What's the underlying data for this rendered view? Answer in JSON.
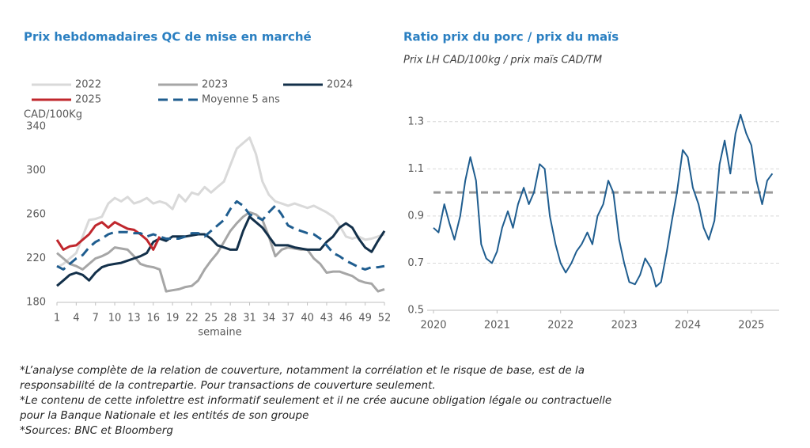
{
  "chart_data": [
    {
      "type": "line",
      "title": "Prix hebdomadaires QC de mise en marché",
      "ylabel": "CAD/100Kg",
      "xlabel": "semaine",
      "x": [
        1,
        2,
        3,
        4,
        5,
        6,
        7,
        8,
        9,
        10,
        11,
        12,
        13,
        14,
        15,
        16,
        17,
        18,
        19,
        20,
        21,
        22,
        23,
        24,
        25,
        26,
        27,
        28,
        29,
        30,
        31,
        32,
        33,
        34,
        35,
        36,
        37,
        38,
        39,
        40,
        41,
        42,
        43,
        44,
        45,
        46,
        47,
        48,
        49,
        50,
        51,
        52
      ],
      "xlim": [
        1,
        52
      ],
      "xticks": [
        1,
        4,
        7,
        10,
        13,
        16,
        19,
        22,
        25,
        28,
        31,
        34,
        37,
        40,
        43,
        46,
        49,
        52
      ],
      "ylim": [
        180,
        340
      ],
      "yticks": [
        180,
        220,
        260,
        300,
        340
      ],
      "grid": false,
      "legend": "top",
      "series": [
        {
          "name": "2022",
          "color": "#d9d9d9",
          "dash": false,
          "values": [
            212,
            215,
            220,
            225,
            240,
            255,
            256,
            258,
            270,
            275,
            272,
            276,
            270,
            272,
            275,
            270,
            272,
            270,
            265,
            278,
            272,
            280,
            278,
            285,
            280,
            285,
            290,
            305,
            320,
            325,
            330,
            315,
            290,
            278,
            272,
            270,
            268,
            270,
            268,
            266,
            268,
            265,
            262,
            258,
            250,
            240,
            238,
            240,
            237,
            238,
            240,
            242
          ]
        },
        {
          "name": "2023",
          "color": "#a6a6a6",
          "dash": false,
          "values": [
            225,
            220,
            215,
            213,
            210,
            215,
            220,
            222,
            225,
            230,
            229,
            228,
            222,
            215,
            213,
            212,
            210,
            190,
            191,
            192,
            194,
            195,
            200,
            210,
            218,
            225,
            235,
            245,
            252,
            258,
            262,
            260,
            255,
            240,
            222,
            228,
            230,
            229,
            228,
            228,
            220,
            215,
            207,
            208,
            208,
            206,
            204,
            200,
            198,
            197,
            190,
            192
          ]
        },
        {
          "name": "2024",
          "color": "#13304a",
          "dash": false,
          "values": [
            195,
            200,
            205,
            207,
            205,
            200,
            207,
            212,
            214,
            215,
            216,
            218,
            220,
            222,
            225,
            235,
            238,
            236,
            240,
            240,
            240,
            241,
            242,
            242,
            238,
            232,
            230,
            228,
            228,
            245,
            258,
            253,
            248,
            240,
            232,
            232,
            232,
            230,
            229,
            228,
            228,
            228,
            235,
            240,
            248,
            252,
            248,
            238,
            230,
            226,
            236,
            245
          ]
        },
        {
          "name": "2025",
          "color": "#c0272d",
          "dash": false,
          "values": [
            237,
            228,
            231,
            232,
            237,
            242,
            250,
            253,
            248,
            253,
            250,
            247,
            246,
            242,
            237,
            228,
            240,
            null,
            null,
            null,
            null,
            null,
            null,
            null,
            null,
            null,
            null,
            null,
            null,
            null,
            null,
            null,
            null,
            null,
            null,
            null,
            null,
            null,
            null,
            null,
            null,
            null,
            null,
            null,
            null,
            null,
            null,
            null,
            null,
            null,
            null,
            null
          ]
        },
        {
          "name": "Moyenne 5 ans",
          "color": "#1f5d8f",
          "dash": true,
          "values": [
            213,
            210,
            215,
            220,
            223,
            230,
            235,
            238,
            242,
            244,
            244,
            244,
            243,
            243,
            240,
            242,
            240,
            238,
            238,
            238,
            240,
            243,
            243,
            240,
            245,
            250,
            255,
            265,
            272,
            268,
            260,
            258,
            255,
            262,
            268,
            260,
            250,
            247,
            245,
            243,
            242,
            238,
            232,
            225,
            222,
            218,
            215,
            212,
            210,
            212,
            212,
            213
          ]
        }
      ]
    },
    {
      "type": "line",
      "title": "Ratio prix du porc / prix du maïs",
      "subtitle": "Prix LH CAD/100kg / prix maïs CAD/TM",
      "x": [
        2020,
        2020.08,
        2020.17,
        2020.25,
        2020.33,
        2020.42,
        2020.5,
        2020.58,
        2020.67,
        2020.75,
        2020.83,
        2020.92,
        2021,
        2021.08,
        2021.17,
        2021.25,
        2021.33,
        2021.42,
        2021.5,
        2021.58,
        2021.67,
        2021.75,
        2021.83,
        2021.92,
        2022,
        2022.08,
        2022.17,
        2022.25,
        2022.33,
        2022.42,
        2022.5,
        2022.58,
        2022.67,
        2022.75,
        2022.83,
        2022.92,
        2023,
        2023.08,
        2023.17,
        2023.25,
        2023.33,
        2023.42,
        2023.5,
        2023.58,
        2023.67,
        2023.75,
        2023.83,
        2023.92,
        2024,
        2024.08,
        2024.17,
        2024.25,
        2024.33,
        2024.42,
        2024.5,
        2024.58,
        2024.67,
        2024.75,
        2024.83,
        2024.92,
        2025,
        2025.08,
        2025.17,
        2025.25,
        2025.33
      ],
      "xlim": [
        2020,
        2025.4
      ],
      "xticks": [
        2020,
        2021,
        2022,
        2023,
        2024,
        2025
      ],
      "ylim": [
        0.5,
        1.4
      ],
      "yticks": [
        0.5,
        0.7,
        0.9,
        1.1,
        1.3
      ],
      "grid": true,
      "reference": {
        "value": 1,
        "color": "#999999"
      },
      "series": [
        {
          "color": "#1f5d8f",
          "dash": false,
          "values": [
            0.85,
            0.83,
            0.95,
            0.87,
            0.8,
            0.9,
            1.05,
            1.15,
            1.05,
            0.78,
            0.72,
            0.7,
            0.75,
            0.85,
            0.92,
            0.85,
            0.95,
            1.02,
            0.95,
            1.0,
            1.12,
            1.1,
            0.9,
            0.78,
            0.7,
            0.66,
            0.7,
            0.75,
            0.78,
            0.83,
            0.78,
            0.9,
            0.95,
            1.05,
            1.0,
            0.8,
            0.7,
            0.62,
            0.61,
            0.65,
            0.72,
            0.68,
            0.6,
            0.62,
            0.75,
            0.88,
            1.0,
            1.18,
            1.15,
            1.02,
            0.95,
            0.85,
            0.8,
            0.88,
            1.12,
            1.22,
            1.08,
            1.25,
            1.33,
            1.25,
            1.2,
            1.05,
            0.95,
            1.05,
            1.08
          ]
        }
      ]
    }
  ],
  "notes": [
    "*L’analyse complète de la relation de couverture, notamment la corrélation et le risque de base, est de la",
    "responsabilité de la contrepartie. Pour transactions de couverture seulement.",
    "*Le contenu de cette infolettre est informatif seulement et il ne crée aucune obligation légale ou contractuelle",
    "pour la Banque Nationale et les entités de son groupe",
    "*Sources: BNC et Bloomberg"
  ]
}
